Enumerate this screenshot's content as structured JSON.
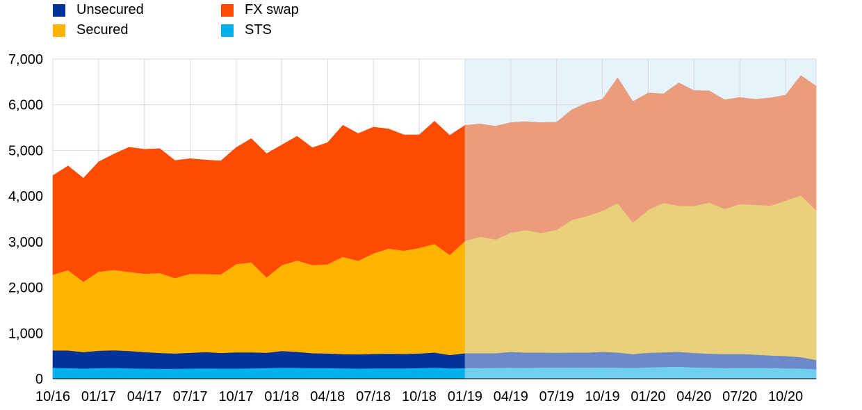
{
  "chart_data": {
    "type": "area",
    "stacked": true,
    "categories": [
      "10/16",
      "11/16",
      "12/16",
      "01/17",
      "02/17",
      "03/17",
      "04/17",
      "05/17",
      "06/17",
      "07/17",
      "08/17",
      "09/17",
      "10/17",
      "11/17",
      "12/17",
      "01/18",
      "02/18",
      "03/18",
      "04/18",
      "05/18",
      "06/18",
      "07/18",
      "08/18",
      "09/18",
      "10/18",
      "11/18",
      "12/18",
      "01/19",
      "02/19",
      "03/19",
      "04/19",
      "05/19",
      "06/19",
      "07/19",
      "08/19",
      "09/19",
      "10/19",
      "11/19",
      "12/19",
      "01/20",
      "02/20",
      "03/20",
      "04/20",
      "05/20",
      "06/20",
      "07/20",
      "08/20",
      "09/20",
      "10/20",
      "11/20",
      "12/20"
    ],
    "x_tick_labels": [
      "10/16",
      "01/17",
      "04/17",
      "07/17",
      "10/17",
      "01/18",
      "04/18",
      "07/18",
      "10/18",
      "01/19",
      "04/19",
      "07/19",
      "10/19",
      "01/20",
      "04/20",
      "07/20",
      "10/20"
    ],
    "series": [
      {
        "name": "STS",
        "color": "#00b1ea",
        "values": [
          240,
          235,
          225,
          235,
          240,
          230,
          225,
          220,
          220,
          225,
          230,
          225,
          225,
          230,
          235,
          245,
          240,
          235,
          235,
          230,
          225,
          230,
          230,
          230,
          235,
          245,
          230,
          235,
          235,
          240,
          245,
          240,
          245,
          245,
          250,
          245,
          250,
          245,
          240,
          250,
          260,
          265,
          250,
          245,
          235,
          240,
          240,
          235,
          230,
          225,
          210
        ]
      },
      {
        "name": "Unsecured",
        "color": "#003299",
        "values": [
          380,
          385,
          360,
          380,
          385,
          380,
          360,
          345,
          335,
          345,
          355,
          340,
          355,
          350,
          335,
          365,
          350,
          325,
          320,
          310,
          310,
          315,
          320,
          315,
          320,
          330,
          290,
          325,
          325,
          320,
          345,
          335,
          330,
          325,
          325,
          330,
          340,
          330,
          300,
          320,
          320,
          325,
          315,
          305,
          305,
          305,
          290,
          275,
          270,
          250,
          200
        ]
      },
      {
        "name": "Secured",
        "color": "#ffb400",
        "values": [
          1660,
          1760,
          1540,
          1730,
          1760,
          1730,
          1715,
          1750,
          1650,
          1730,
          1710,
          1720,
          1930,
          1970,
          1650,
          1880,
          2000,
          1930,
          1950,
          2130,
          2050,
          2200,
          2300,
          2260,
          2310,
          2380,
          2190,
          2460,
          2550,
          2490,
          2610,
          2680,
          2620,
          2690,
          2900,
          2990,
          3090,
          3270,
          2880,
          3130,
          3270,
          3200,
          3220,
          3310,
          3180,
          3280,
          3280,
          3280,
          3400,
          3540,
          3280
        ]
      },
      {
        "name": "FX swap",
        "color": "#ff4b00",
        "values": [
          2170,
          2280,
          2265,
          2405,
          2535,
          2730,
          2725,
          2725,
          2575,
          2520,
          2495,
          2485,
          2550,
          2710,
          2710,
          2630,
          2720,
          2570,
          2665,
          2880,
          2785,
          2765,
          2620,
          2535,
          2475,
          2685,
          2620,
          2530,
          2470,
          2480,
          2410,
          2375,
          2415,
          2360,
          2415,
          2475,
          2440,
          2745,
          2650,
          2560,
          2390,
          2690,
          2525,
          2445,
          2390,
          2335,
          2310,
          2360,
          2310,
          2625,
          2720
        ]
      }
    ],
    "projection_start": "01/19",
    "projection_colors": {
      "STS": "#70cfef",
      "Unsecured": "#6c8ac9",
      "Secured": "#e9d07a",
      "FX swap": "#eb9c7c"
    },
    "projection_band_color": "#e7f3fa",
    "y_ticks": [
      0,
      1000,
      2000,
      3000,
      4000,
      5000,
      6000,
      7000
    ],
    "y_tick_labels": [
      "0",
      "1,000",
      "2,000",
      "3,000",
      "4,000",
      "5,000",
      "6,000",
      "7,000"
    ],
    "ylim": [
      0,
      7000
    ],
    "grid": true,
    "legend": {
      "placement": "top-left",
      "items": [
        {
          "name": "Unsecured",
          "color": "#003299"
        },
        {
          "name": "FX swap",
          "color": "#ff4b00"
        },
        {
          "name": "Secured",
          "color": "#ffb400"
        },
        {
          "name": "STS",
          "color": "#00b1ea"
        }
      ]
    },
    "title": "",
    "xlabel": "",
    "ylabel": ""
  }
}
